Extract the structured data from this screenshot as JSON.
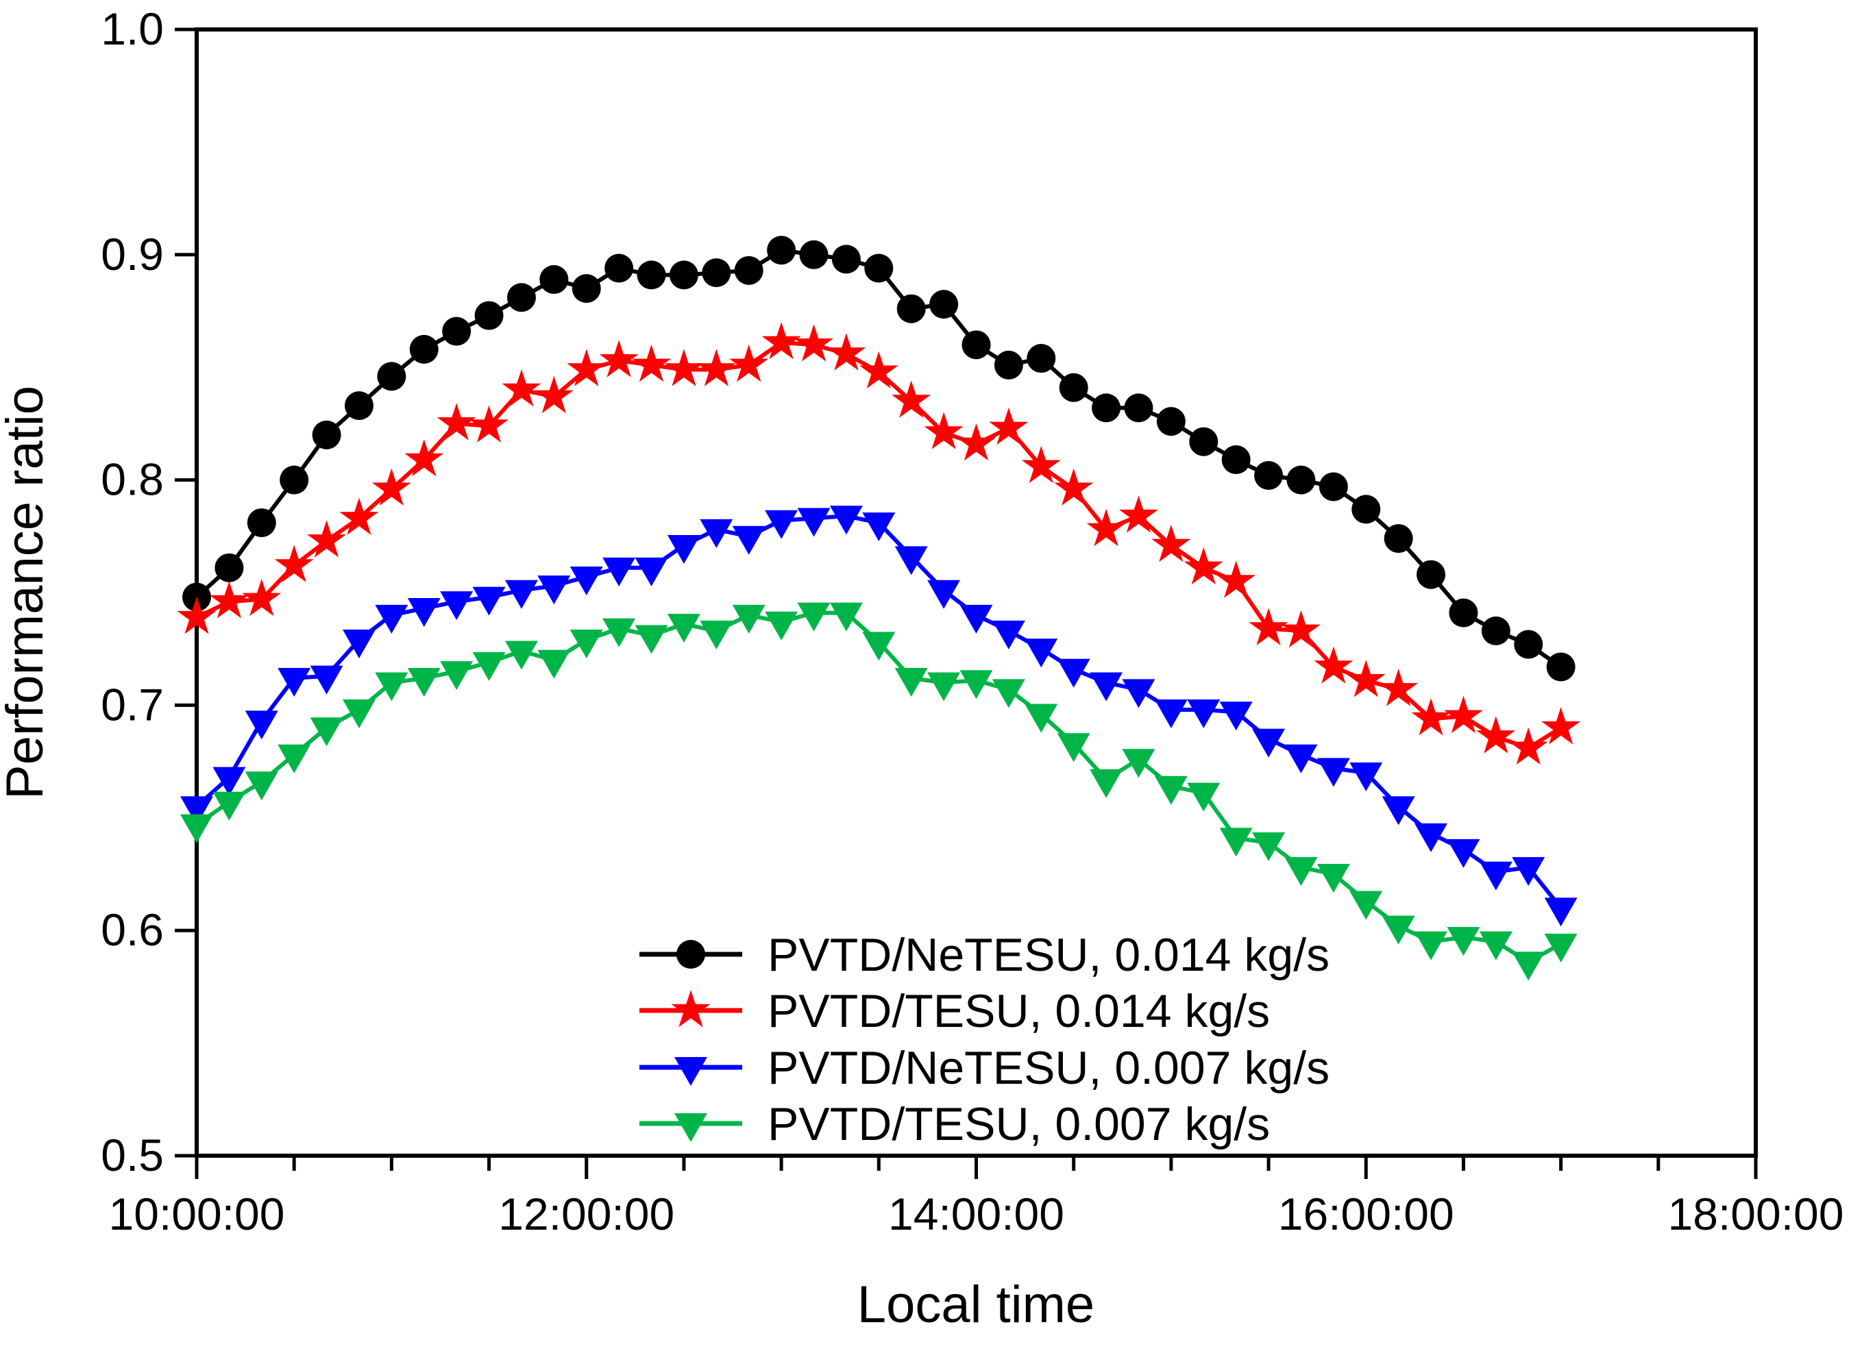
{
  "chart_data": {
    "type": "line",
    "title": "",
    "xlabel": "Local time",
    "ylabel": "Performance ratio",
    "legend_position": "inside-bottom-center",
    "grid": false,
    "x_axis": {
      "min_minutes": 600,
      "max_minutes": 1080,
      "major_tick_minutes": [
        600,
        720,
        840,
        960,
        1080
      ],
      "major_tick_labels": [
        "10:00:00",
        "12:00:00",
        "14:00:00",
        "16:00:00",
        "18:00:00"
      ],
      "minor_tick_interval_minutes": 30
    },
    "y_axis": {
      "min": 0.5,
      "max": 1.0,
      "tick_values": [
        0.5,
        0.6,
        0.7,
        0.8,
        0.9,
        1.0
      ],
      "tick_labels": [
        "0.5",
        "0.6",
        "0.7",
        "0.8",
        "0.9",
        "1.0"
      ]
    },
    "x_times": [
      "10:00",
      "10:10",
      "10:20",
      "10:30",
      "10:40",
      "10:50",
      "11:00",
      "11:10",
      "11:20",
      "11:30",
      "11:40",
      "11:50",
      "12:00",
      "12:10",
      "12:20",
      "12:30",
      "12:40",
      "12:50",
      "13:00",
      "13:10",
      "13:20",
      "13:30",
      "13:40",
      "13:50",
      "14:00",
      "14:10",
      "14:20",
      "14:30",
      "14:40",
      "14:50",
      "15:00",
      "15:10",
      "15:20",
      "15:30",
      "15:40",
      "15:50",
      "16:00",
      "16:10",
      "16:20",
      "16:30",
      "16:40",
      "16:50",
      "17:00"
    ],
    "start_minutes": 600,
    "interval_minutes": 10,
    "series": [
      {
        "name": "PVTD/NeTESU, 0.014 kg/s",
        "color": "#000000",
        "marker": "circle",
        "values": [
          0.748,
          0.761,
          0.781,
          0.8,
          0.82,
          0.833,
          0.846,
          0.858,
          0.866,
          0.873,
          0.881,
          0.889,
          0.885,
          0.894,
          0.891,
          0.891,
          0.892,
          0.893,
          0.902,
          0.9,
          0.898,
          0.894,
          0.876,
          0.878,
          0.86,
          0.851,
          0.854,
          0.841,
          0.832,
          0.832,
          0.826,
          0.817,
          0.809,
          0.802,
          0.8,
          0.797,
          0.787,
          0.774,
          0.758,
          0.741,
          0.733,
          0.727,
          0.717
        ]
      },
      {
        "name": "PVTD/TESU, 0.014 kg/s",
        "color": "#ff0000",
        "marker": "star",
        "values": [
          0.739,
          0.746,
          0.747,
          0.762,
          0.773,
          0.783,
          0.796,
          0.809,
          0.825,
          0.824,
          0.84,
          0.837,
          0.849,
          0.853,
          0.851,
          0.849,
          0.849,
          0.851,
          0.861,
          0.86,
          0.856,
          0.848,
          0.835,
          0.821,
          0.816,
          0.823,
          0.806,
          0.796,
          0.778,
          0.784,
          0.771,
          0.761,
          0.755,
          0.734,
          0.733,
          0.717,
          0.711,
          0.707,
          0.694,
          0.695,
          0.686,
          0.681,
          0.69
        ]
      },
      {
        "name": "PVTD/NeTESU, 0.007 kg/s",
        "color": "#0000ff",
        "marker": "triangle-down",
        "values": [
          0.655,
          0.668,
          0.693,
          0.712,
          0.713,
          0.729,
          0.74,
          0.743,
          0.746,
          0.748,
          0.751,
          0.753,
          0.757,
          0.761,
          0.761,
          0.771,
          0.778,
          0.775,
          0.782,
          0.783,
          0.784,
          0.781,
          0.766,
          0.751,
          0.74,
          0.733,
          0.725,
          0.716,
          0.71,
          0.707,
          0.698,
          0.698,
          0.697,
          0.685,
          0.678,
          0.672,
          0.67,
          0.655,
          0.643,
          0.636,
          0.626,
          0.628,
          0.61
        ]
      },
      {
        "name": "PVTD/TESU, 0.007 kg/s",
        "color": "#00b548",
        "marker": "triangle-down",
        "values": [
          0.647,
          0.657,
          0.666,
          0.678,
          0.69,
          0.698,
          0.71,
          0.712,
          0.715,
          0.719,
          0.724,
          0.72,
          0.729,
          0.734,
          0.731,
          0.736,
          0.733,
          0.74,
          0.737,
          0.741,
          0.741,
          0.728,
          0.712,
          0.71,
          0.711,
          0.707,
          0.696,
          0.683,
          0.667,
          0.676,
          0.664,
          0.661,
          0.641,
          0.639,
          0.628,
          0.625,
          0.613,
          0.602,
          0.595,
          0.597,
          0.595,
          0.586,
          0.594
        ]
      }
    ]
  }
}
